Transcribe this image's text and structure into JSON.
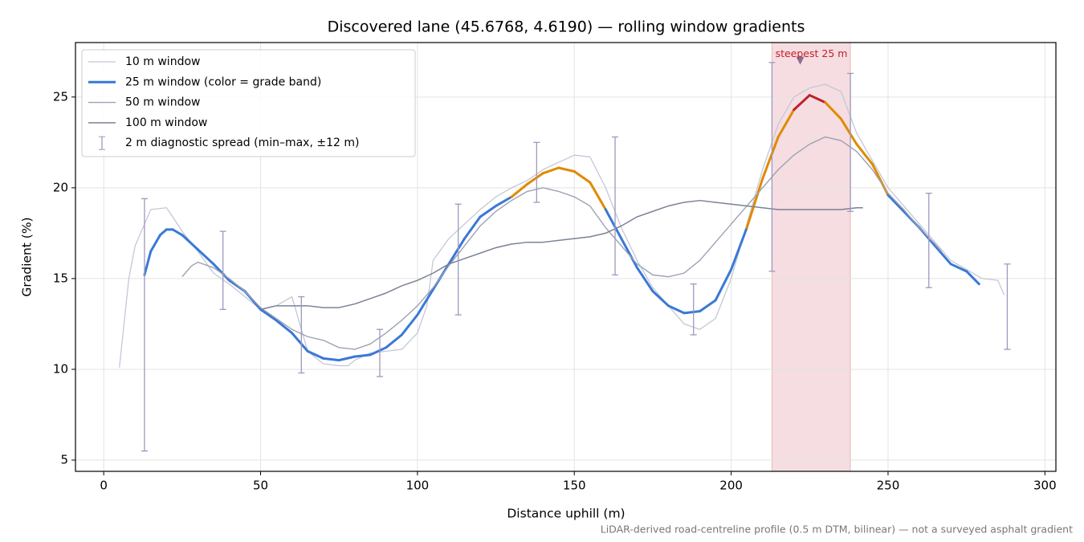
{
  "chart_data": {
    "type": "line",
    "title": "Discovered lane (45.6768, 4.6190) — rolling window gradients",
    "x_label": "Distance uphill (m)",
    "y_label": "Gradient (%)",
    "footnote": "LiDAR-derived road-centreline profile (0.5 m DTM, bilinear) — not a surveyed asphalt gradient",
    "xlim": [
      -9,
      303.5
    ],
    "ylim": [
      4.38,
      28
    ],
    "xticks": [
      0,
      50,
      100,
      150,
      200,
      250,
      300
    ],
    "yticks": [
      5,
      10,
      15,
      20,
      25
    ],
    "grid": true,
    "legend": "upper left",
    "grade_bands": [
      {
        "from": 20,
        "color": "#e08a00"
      },
      {
        "from": 25,
        "color": "#c0202a"
      }
    ],
    "series": [
      {
        "name": "10 m window",
        "color": "#c3c8d6",
        "width": 1.3,
        "x": [
          5,
          8,
          10,
          15,
          20,
          22,
          25,
          30,
          35,
          40,
          45,
          50,
          55,
          60,
          65,
          70,
          75,
          78,
          80,
          85,
          90,
          95,
          100,
          103,
          105,
          110,
          115,
          120,
          125,
          130,
          135,
          140,
          145,
          150,
          155,
          160,
          165,
          170,
          175,
          180,
          185,
          190,
          195,
          200,
          205,
          210,
          215,
          220,
          225,
          230,
          235,
          240,
          245,
          250,
          255,
          260,
          265,
          270,
          275,
          280,
          285,
          287
        ],
        "values": [
          10.1,
          15,
          16.8,
          18.8,
          18.9,
          18.4,
          17.6,
          16.5,
          15.3,
          14.7,
          14.0,
          13.3,
          13.5,
          14.0,
          11.0,
          10.3,
          10.2,
          10.2,
          10.5,
          10.9,
          11.0,
          11.1,
          12.0,
          13.5,
          16.0,
          17.2,
          18.0,
          18.8,
          19.5,
          20.0,
          20.4,
          21.0,
          21.4,
          21.8,
          21.7,
          20.0,
          17.8,
          16.0,
          14.5,
          13.5,
          12.5,
          12.2,
          12.8,
          15.0,
          18.0,
          21.0,
          23.5,
          25.0,
          25.5,
          25.7,
          25.3,
          23.0,
          21.5,
          20.0,
          19.0,
          18.0,
          17.0,
          16.0,
          15.5,
          15.0,
          14.9,
          14.1
        ]
      },
      {
        "name": "25 m window (color = grade band)",
        "color": "#3a78d6",
        "width": 3,
        "banded": true,
        "x": [
          13,
          15,
          18,
          20,
          22,
          25,
          30,
          35,
          40,
          45,
          50,
          55,
          60,
          65,
          70,
          75,
          80,
          85,
          90,
          95,
          100,
          105,
          110,
          115,
          120,
          125,
          130,
          135,
          140,
          145,
          150,
          155,
          160,
          165,
          170,
          175,
          180,
          185,
          190,
          195,
          200,
          205,
          210,
          215,
          220,
          225,
          230,
          235,
          240,
          245,
          250,
          255,
          260,
          265,
          270,
          275,
          279
        ],
        "values": [
          15.2,
          16.5,
          17.4,
          17.7,
          17.7,
          17.4,
          16.6,
          15.8,
          14.9,
          14.3,
          13.3,
          12.7,
          12.0,
          11.0,
          10.6,
          10.5,
          10.7,
          10.8,
          11.2,
          11.9,
          13.0,
          14.4,
          15.8,
          17.2,
          18.4,
          19.0,
          19.5,
          20.2,
          20.8,
          21.1,
          20.9,
          20.3,
          18.8,
          17.2,
          15.6,
          14.3,
          13.5,
          13.1,
          13.2,
          13.8,
          15.5,
          17.8,
          20.5,
          22.8,
          24.3,
          25.1,
          24.7,
          23.8,
          22.4,
          21.3,
          19.6,
          18.7,
          17.8,
          16.8,
          15.8,
          15.4,
          14.7
        ]
      },
      {
        "name": "50 m window",
        "color": "#9ca2b4",
        "width": 1.4,
        "x": [
          25,
          28,
          30,
          35,
          40,
          45,
          50,
          55,
          60,
          65,
          70,
          75,
          80,
          85,
          90,
          95,
          100,
          105,
          110,
          115,
          120,
          125,
          130,
          135,
          140,
          145,
          150,
          155,
          160,
          165,
          170,
          175,
          180,
          185,
          190,
          195,
          200,
          205,
          210,
          215,
          220,
          225,
          230,
          235,
          240,
          245,
          250,
          255,
          260,
          265,
          267
        ],
        "values": [
          15.1,
          15.7,
          15.9,
          15.6,
          15.0,
          14.3,
          13.4,
          12.8,
          12.2,
          11.8,
          11.6,
          11.2,
          11.1,
          11.4,
          12.0,
          12.7,
          13.5,
          14.5,
          15.7,
          16.8,
          17.9,
          18.7,
          19.3,
          19.8,
          20.0,
          19.8,
          19.5,
          19.0,
          17.8,
          16.8,
          15.8,
          15.2,
          15.1,
          15.3,
          16.0,
          17.0,
          18.0,
          19.0,
          20.0,
          21.0,
          21.8,
          22.4,
          22.8,
          22.6,
          22.0,
          21.0,
          19.7,
          18.8,
          17.8,
          16.9,
          16.5
        ]
      },
      {
        "name": "100 m window",
        "color": "#7a8296",
        "width": 1.5,
        "x": [
          50,
          55,
          60,
          65,
          70,
          75,
          80,
          85,
          90,
          95,
          100,
          105,
          110,
          115,
          120,
          125,
          130,
          135,
          140,
          145,
          150,
          155,
          160,
          165,
          170,
          175,
          180,
          185,
          190,
          195,
          200,
          205,
          210,
          215,
          220,
          225,
          230,
          235,
          240,
          242
        ],
        "values": [
          13.3,
          13.5,
          13.5,
          13.5,
          13.4,
          13.4,
          13.6,
          13.9,
          14.2,
          14.6,
          14.9,
          15.3,
          15.8,
          16.1,
          16.4,
          16.7,
          16.9,
          17.0,
          17.0,
          17.1,
          17.2,
          17.3,
          17.5,
          17.9,
          18.4,
          18.7,
          19.0,
          19.2,
          19.3,
          19.2,
          19.1,
          19.0,
          18.9,
          18.8,
          18.8,
          18.8,
          18.8,
          18.8,
          18.9,
          18.9
        ]
      }
    ],
    "errorbars": {
      "name": "2 m diagnostic spread (min–max, ±12 m)",
      "color": "#9e98bf",
      "x": [
        13,
        38,
        63,
        88,
        113,
        138,
        163,
        188,
        213,
        238,
        263,
        288
      ],
      "low": [
        5.5,
        13.3,
        9.8,
        9.6,
        13.0,
        19.2,
        15.2,
        11.9,
        15.4,
        18.7,
        14.5,
        11.1
      ],
      "high": [
        19.4,
        17.6,
        14.0,
        12.2,
        19.1,
        22.5,
        22.8,
        14.7,
        26.9,
        26.3,
        19.7,
        15.8
      ]
    },
    "span": {
      "from": 213,
      "to": 238,
      "color": "#e8b4bc"
    },
    "annotation": {
      "text": "steepest 25 m",
      "x": 222,
      "y": 27,
      "color": "#c0202a"
    }
  }
}
